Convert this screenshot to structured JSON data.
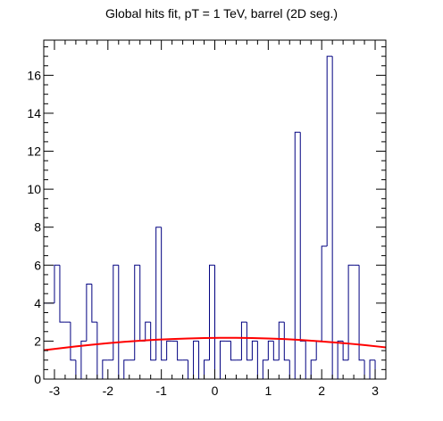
{
  "chart_data": {
    "type": "histogram",
    "title": "Global hits fit, pT = 1 TeV, barrel (2D seg.)",
    "xlabel": "",
    "ylabel": "",
    "xlim": [
      -3.2,
      3.2
    ],
    "ylim": [
      0,
      17.85
    ],
    "bin_edges": [
      -3.2,
      -3.1,
      -3.0,
      -2.9,
      -2.8,
      -2.7,
      -2.6,
      -2.5,
      -2.4,
      -2.3,
      -2.2,
      -2.1,
      -2.0,
      -1.9,
      -1.8,
      -1.7,
      -1.6,
      -1.5,
      -1.4,
      -1.3,
      -1.2,
      -1.1,
      -1.0,
      -0.9,
      -0.8,
      -0.7,
      -0.6,
      -0.5,
      -0.4,
      -0.3,
      -0.2,
      -0.1,
      0.0,
      0.1,
      0.2,
      0.3,
      0.4,
      0.5,
      0.6,
      0.7,
      0.8,
      0.9,
      1.0,
      1.1,
      1.2,
      1.3,
      1.4,
      1.5,
      1.6,
      1.7,
      1.8,
      1.9,
      2.0,
      2.1,
      2.2,
      2.3,
      2.4,
      2.5,
      2.6,
      2.7,
      2.8,
      2.9,
      3.0,
      3.1,
      3.2
    ],
    "values": [
      4,
      4,
      6,
      3,
      3,
      1,
      0,
      2,
      5,
      3,
      0,
      1,
      1,
      6,
      0,
      1,
      1,
      6,
      2,
      3,
      1,
      8,
      1,
      2,
      2,
      1,
      1,
      0,
      2,
      0,
      1,
      6,
      0,
      2,
      2,
      1,
      1,
      3,
      1,
      2,
      0,
      1,
      2,
      1,
      3,
      1,
      0,
      13,
      2,
      0,
      1,
      2,
      7,
      17,
      0,
      2,
      1,
      6,
      6,
      1,
      0,
      1,
      0,
      0
    ],
    "fit": {
      "name": "Gaussian fit",
      "color": "#ff0000",
      "x": [
        -3.2,
        -2.9,
        -2.6,
        -2.3,
        -2.0,
        -1.7,
        -1.4,
        -1.1,
        -0.8,
        -0.5,
        -0.2,
        0.1,
        0.4,
        0.7,
        1.0,
        1.3,
        1.6,
        1.9,
        2.2,
        2.5,
        2.8,
        3.1,
        3.2
      ],
      "y": [
        1.52,
        1.62,
        1.72,
        1.81,
        1.89,
        1.96,
        2.02,
        2.07,
        2.11,
        2.14,
        2.16,
        2.17,
        2.17,
        2.16,
        2.14,
        2.11,
        2.06,
        2.0,
        1.94,
        1.87,
        1.79,
        1.7,
        1.67
      ]
    },
    "histogram_color": "#000080",
    "x_ticks": [
      -3,
      -2,
      -1,
      0,
      1,
      2,
      3
    ],
    "x_tick_labels": [
      "-3",
      "-2",
      "-1",
      "0",
      "1",
      "2",
      "3"
    ],
    "y_ticks": [
      0,
      2,
      4,
      6,
      8,
      10,
      12,
      14,
      16
    ],
    "y_tick_labels": [
      "0",
      "2",
      "4",
      "6",
      "8",
      "10",
      "12",
      "14",
      "16"
    ],
    "grid": false,
    "legend": "none"
  }
}
